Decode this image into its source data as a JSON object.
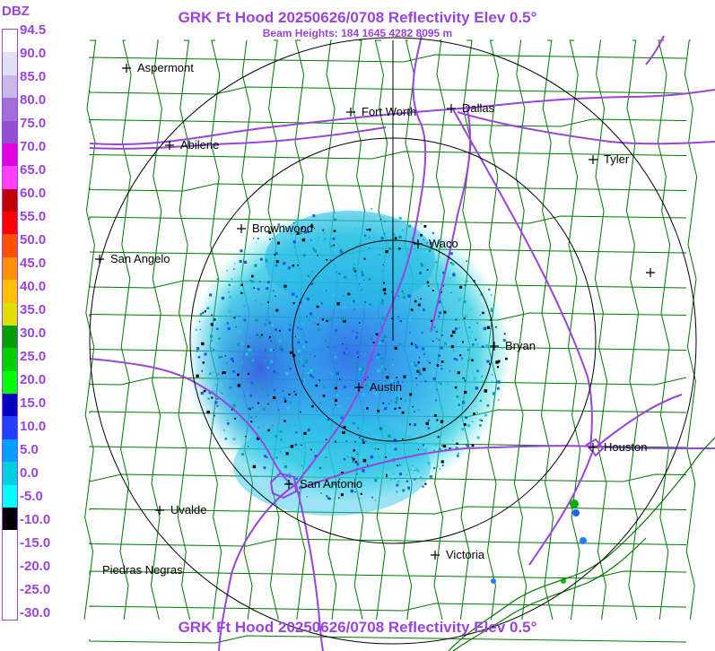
{
  "header": {
    "title": "GRK Ft Hood 20250626/0708 Reflectivity Elev 0.5°",
    "beam_heights": "Beam Heights: 184 1645 4282 8095 m",
    "footer_title": "GRK Ft Hood 20250626/0708 Reflectivity Elev 0.5°"
  },
  "legend": {
    "unit": "DBZ",
    "labels": [
      "94.5",
      "90.0",
      "85.0",
      "80.0",
      "75.0",
      "70.0",
      "65.0",
      "60.0",
      "55.0",
      "50.0",
      "45.0",
      "40.0",
      "35.0",
      "30.0",
      "25.0",
      "20.0",
      "15.0",
      "10.0",
      "5.0",
      "0.0",
      "-5.0",
      "-10.0",
      "-15.0",
      "-20.0",
      "-25.0",
      "-30.0"
    ],
    "colors": [
      "#ffffff",
      "#e0e0f0",
      "#c8b8e8",
      "#a070d8",
      "#9050d0",
      "#e000e0",
      "#ff40ff",
      "#c00000",
      "#ff0000",
      "#ff5000",
      "#ff9000",
      "#ffc000",
      "#e0e000",
      "#00a000",
      "#00d000",
      "#00ff00",
      "#0000c0",
      "#2040ff",
      "#00a0ff",
      "#00d0e0",
      "#00ffff",
      "#000000",
      "#ffffff",
      "#ffffff",
      "#ffffff",
      "#ffffff"
    ],
    "line_color": "#9944dd"
  },
  "map": {
    "range_ring_color": "#000000",
    "county_line_color": "#007700",
    "highway_color": "#9944dd",
    "cities": [
      {
        "name": "Aspermont",
        "label_side": "right"
      },
      {
        "name": "Fort Worth",
        "label_side": "right"
      },
      {
        "name": "Dallas",
        "label_side": "right"
      },
      {
        "name": "Abilene",
        "label_side": "right"
      },
      {
        "name": "Tyler",
        "label_side": "right"
      },
      {
        "name": "Brownwood",
        "label_side": "right"
      },
      {
        "name": "Waco",
        "label_side": "right"
      },
      {
        "name": "San Angelo",
        "label_side": "right"
      },
      {
        "name": "Bryan",
        "label_side": "right"
      },
      {
        "name": "Austin",
        "label_side": "right"
      },
      {
        "name": "Houston",
        "label_side": "right"
      },
      {
        "name": "San Antonio",
        "label_side": "right"
      },
      {
        "name": "Uvalde",
        "label_side": "right"
      },
      {
        "name": "Victoria",
        "label_side": "right"
      },
      {
        "name": "Piedras Negras",
        "label_side": "none"
      },
      {
        "name": "",
        "label_side": "none"
      }
    ]
  }
}
